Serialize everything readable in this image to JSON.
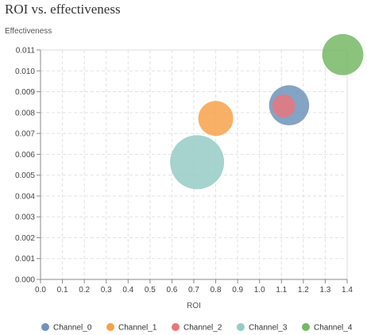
{
  "chart_data": {
    "type": "scatter",
    "title": "ROI vs. effectiveness",
    "xlabel": "ROI",
    "ylabel": "Effectiveness",
    "xlim": [
      0,
      1.4
    ],
    "ylim": [
      0,
      0.011
    ],
    "x_ticks": [
      "0.0",
      "0.1",
      "0.2",
      "0.3",
      "0.4",
      "0.5",
      "0.6",
      "0.7",
      "0.8",
      "0.9",
      "1.0",
      "1.1",
      "1.2",
      "1.3",
      "1.4"
    ],
    "y_ticks": [
      "0.000",
      "0.001",
      "0.002",
      "0.003",
      "0.004",
      "0.005",
      "0.006",
      "0.007",
      "0.008",
      "0.009",
      "0.010",
      "0.011"
    ],
    "grid": true,
    "legend_position": "bottom",
    "series": [
      {
        "name": "Channel_0",
        "x": 1.135,
        "y": 0.00835,
        "size": 0.55,
        "color": "#6f93bb"
      },
      {
        "name": "Channel_1",
        "x": 0.8,
        "y": 0.00772,
        "size": 0.42,
        "color": "#f7a24b"
      },
      {
        "name": "Channel_2",
        "x": 1.11,
        "y": 0.00832,
        "size": 0.18,
        "color": "#e8777c"
      },
      {
        "name": "Channel_3",
        "x": 0.715,
        "y": 0.00562,
        "size": 1.0,
        "color": "#97cbc6"
      },
      {
        "name": "Channel_4",
        "x": 1.38,
        "y": 0.01078,
        "size": 0.58,
        "color": "#77b765"
      }
    ]
  }
}
